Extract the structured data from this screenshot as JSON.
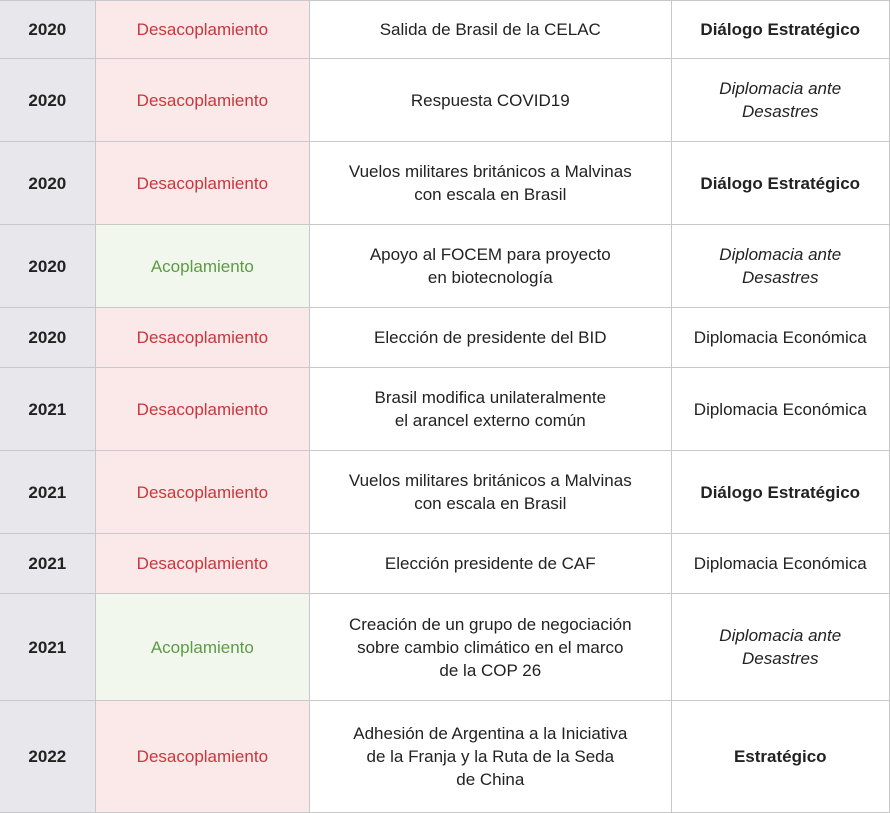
{
  "rows": [
    {
      "year": "2020",
      "status": "Desacoplamiento",
      "status_type": "desac",
      "event": [
        "Salida de Brasil de la CELAC"
      ],
      "category": [
        "Diálogo Estratégico"
      ],
      "cat_style": "bold",
      "h": 58
    },
    {
      "year": "2020",
      "status": "Desacoplamiento",
      "status_type": "desac",
      "event": [
        "Respuesta COVID19"
      ],
      "category": [
        "Diplomacia ante",
        "Desastres"
      ],
      "cat_style": "italic",
      "h": 83
    },
    {
      "year": "2020",
      "status": "Desacoplamiento",
      "status_type": "desac",
      "event": [
        "Vuelos militares británicos a Malvinas",
        "con escala en Brasil"
      ],
      "category": [
        "Diálogo Estratégico"
      ],
      "cat_style": "bold",
      "h": 83
    },
    {
      "year": "2020",
      "status": "Acoplamiento",
      "status_type": "acop",
      "event": [
        "Apoyo al FOCEM para proyecto",
        "en biotecnología"
      ],
      "category": [
        "Diplomacia ante",
        "Desastres"
      ],
      "cat_style": "italic",
      "h": 83
    },
    {
      "year": "2020",
      "status": "Desacoplamiento",
      "status_type": "desac",
      "event": [
        "Elección de presidente del BID"
      ],
      "category": [
        "Diplomacia Económica"
      ],
      "cat_style": "normal",
      "h": 60
    },
    {
      "year": "2021",
      "status": "Desacoplamiento",
      "status_type": "desac",
      "event": [
        "Brasil modifica unilateralmente",
        "el arancel externo común"
      ],
      "category": [
        "Diplomacia Económica"
      ],
      "cat_style": "normal",
      "h": 83
    },
    {
      "year": "2021",
      "status": "Desacoplamiento",
      "status_type": "desac",
      "event": [
        "Vuelos militares británicos a Malvinas",
        "con escala en Brasil"
      ],
      "category": [
        "Diálogo Estratégico"
      ],
      "cat_style": "bold",
      "h": 83
    },
    {
      "year": "2021",
      "status": "Desacoplamiento",
      "status_type": "desac",
      "event": [
        "Elección presidente de CAF"
      ],
      "category": [
        "Diplomacia Económica"
      ],
      "cat_style": "normal",
      "h": 60
    },
    {
      "year": "2021",
      "status": "Acoplamiento",
      "status_type": "acop",
      "event": [
        "Creación de un grupo de negociación",
        "sobre cambio climático en el marco",
        "de la COP 26"
      ],
      "category": [
        "Diplomacia ante",
        "Desastres"
      ],
      "cat_style": "italic",
      "h": 107
    },
    {
      "year": "2022",
      "status": "Desacoplamiento",
      "status_type": "desac",
      "event": [
        "Adhesión de Argentina a la Iniciativa",
        "de la Franja y la Ruta de la Seda",
        "de China"
      ],
      "category": [
        "Estratégico"
      ],
      "cat_style": "bold",
      "h": 112
    }
  ]
}
